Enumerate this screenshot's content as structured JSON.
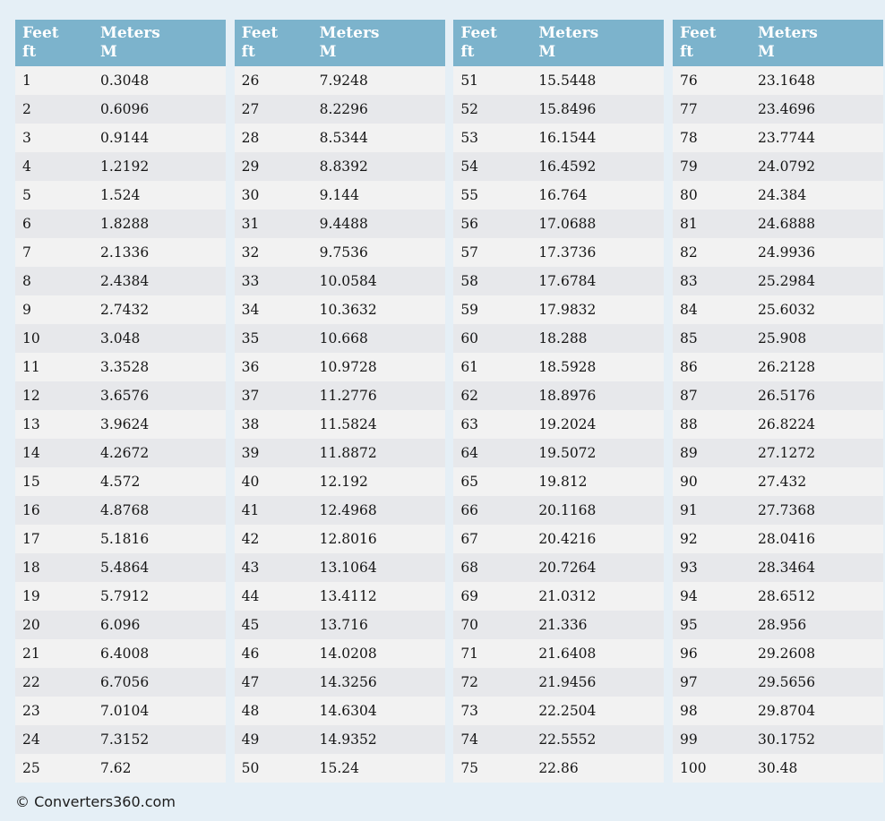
{
  "page": {
    "footer_text": "© Converters360.com"
  },
  "colors": {
    "page_background": "#e5eff6",
    "header_background": "#7cb3cc",
    "header_text": "#ffffff",
    "row_odd": "#f2f2f2",
    "row_even": "#e7e8eb",
    "cell_text": "#151515",
    "footer_text": "#1c1c1c"
  },
  "table_header": {
    "feet_title": "Feet",
    "feet_unit": "ft",
    "meters_title": "Meters",
    "meters_unit": "M"
  },
  "tables": [
    {
      "rows": [
        [
          "1",
          "0.3048"
        ],
        [
          "2",
          "0.6096"
        ],
        [
          "3",
          "0.9144"
        ],
        [
          "4",
          "1.2192"
        ],
        [
          "5",
          "1.524"
        ],
        [
          "6",
          "1.8288"
        ],
        [
          "7",
          "2.1336"
        ],
        [
          "8",
          "2.4384"
        ],
        [
          "9",
          "2.7432"
        ],
        [
          "10",
          "3.048"
        ],
        [
          "11",
          "3.3528"
        ],
        [
          "12",
          "3.6576"
        ],
        [
          "13",
          "3.9624"
        ],
        [
          "14",
          "4.2672"
        ],
        [
          "15",
          "4.572"
        ],
        [
          "16",
          "4.8768"
        ],
        [
          "17",
          "5.1816"
        ],
        [
          "18",
          "5.4864"
        ],
        [
          "19",
          "5.7912"
        ],
        [
          "20",
          "6.096"
        ],
        [
          "21",
          "6.4008"
        ],
        [
          "22",
          "6.7056"
        ],
        [
          "23",
          "7.0104"
        ],
        [
          "24",
          "7.3152"
        ],
        [
          "25",
          "7.62"
        ]
      ]
    },
    {
      "rows": [
        [
          "26",
          "7.9248"
        ],
        [
          "27",
          "8.2296"
        ],
        [
          "28",
          "8.5344"
        ],
        [
          "29",
          "8.8392"
        ],
        [
          "30",
          "9.144"
        ],
        [
          "31",
          "9.4488"
        ],
        [
          "32",
          "9.7536"
        ],
        [
          "33",
          "10.0584"
        ],
        [
          "34",
          "10.3632"
        ],
        [
          "35",
          "10.668"
        ],
        [
          "36",
          "10.9728"
        ],
        [
          "37",
          "11.2776"
        ],
        [
          "38",
          "11.5824"
        ],
        [
          "39",
          "11.8872"
        ],
        [
          "40",
          "12.192"
        ],
        [
          "41",
          "12.4968"
        ],
        [
          "42",
          "12.8016"
        ],
        [
          "43",
          "13.1064"
        ],
        [
          "44",
          "13.4112"
        ],
        [
          "45",
          "13.716"
        ],
        [
          "46",
          "14.0208"
        ],
        [
          "47",
          "14.3256"
        ],
        [
          "48",
          "14.6304"
        ],
        [
          "49",
          "14.9352"
        ],
        [
          "50",
          "15.24"
        ]
      ]
    },
    {
      "rows": [
        [
          "51",
          "15.5448"
        ],
        [
          "52",
          "15.8496"
        ],
        [
          "53",
          "16.1544"
        ],
        [
          "54",
          "16.4592"
        ],
        [
          "55",
          "16.764"
        ],
        [
          "56",
          "17.0688"
        ],
        [
          "57",
          "17.3736"
        ],
        [
          "58",
          "17.6784"
        ],
        [
          "59",
          "17.9832"
        ],
        [
          "60",
          "18.288"
        ],
        [
          "61",
          "18.5928"
        ],
        [
          "62",
          "18.8976"
        ],
        [
          "63",
          "19.2024"
        ],
        [
          "64",
          "19.5072"
        ],
        [
          "65",
          "19.812"
        ],
        [
          "66",
          "20.1168"
        ],
        [
          "67",
          "20.4216"
        ],
        [
          "68",
          "20.7264"
        ],
        [
          "69",
          "21.0312"
        ],
        [
          "70",
          "21.336"
        ],
        [
          "71",
          "21.6408"
        ],
        [
          "72",
          "21.9456"
        ],
        [
          "73",
          "22.2504"
        ],
        [
          "74",
          "22.5552"
        ],
        [
          "75",
          "22.86"
        ]
      ]
    },
    {
      "rows": [
        [
          "76",
          "23.1648"
        ],
        [
          "77",
          "23.4696"
        ],
        [
          "78",
          "23.7744"
        ],
        [
          "79",
          "24.0792"
        ],
        [
          "80",
          "24.384"
        ],
        [
          "81",
          "24.6888"
        ],
        [
          "82",
          "24.9936"
        ],
        [
          "83",
          "25.2984"
        ],
        [
          "84",
          "25.6032"
        ],
        [
          "85",
          "25.908"
        ],
        [
          "86",
          "26.2128"
        ],
        [
          "87",
          "26.5176"
        ],
        [
          "88",
          "26.8224"
        ],
        [
          "89",
          "27.1272"
        ],
        [
          "90",
          "27.432"
        ],
        [
          "91",
          "27.7368"
        ],
        [
          "92",
          "28.0416"
        ],
        [
          "93",
          "28.3464"
        ],
        [
          "94",
          "28.6512"
        ],
        [
          "95",
          "28.956"
        ],
        [
          "96",
          "29.2608"
        ],
        [
          "97",
          "29.5656"
        ],
        [
          "98",
          "29.8704"
        ],
        [
          "99",
          "30.1752"
        ],
        [
          "100",
          "30.48"
        ]
      ]
    }
  ]
}
